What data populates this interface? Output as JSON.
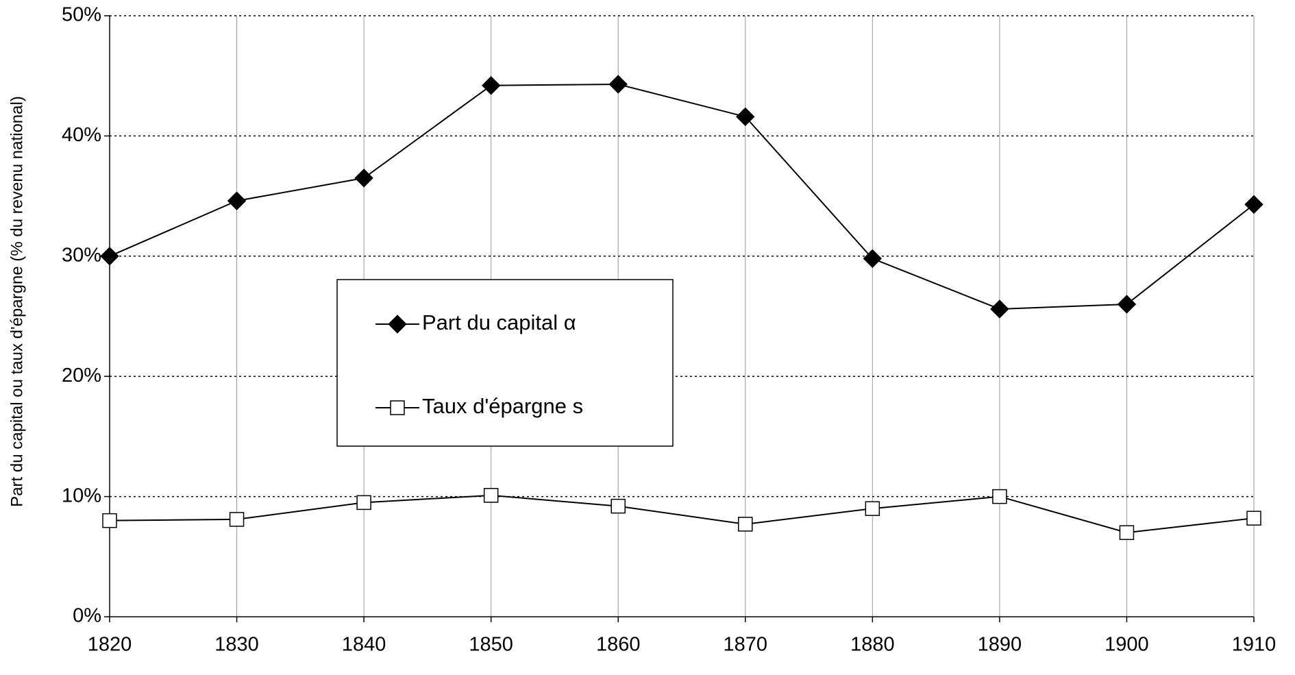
{
  "chart_data": {
    "type": "line",
    "y_label": "Part du capital ou taux d'épargne (% du revenu national)",
    "x": [
      1820,
      1830,
      1840,
      1850,
      1860,
      1870,
      1880,
      1890,
      1900,
      1910
    ],
    "xlim": [
      1820,
      1910
    ],
    "xticks": [
      1820,
      1830,
      1840,
      1850,
      1860,
      1870,
      1880,
      1890,
      1900,
      1910
    ],
    "ylim": [
      0,
      50
    ],
    "yticks": [
      {
        "value": 0,
        "label": "0%"
      },
      {
        "value": 10,
        "label": "10%"
      },
      {
        "value": 20,
        "label": "20%"
      },
      {
        "value": 30,
        "label": "30%"
      },
      {
        "value": 40,
        "label": "40%"
      },
      {
        "value": 50,
        "label": "50%"
      }
    ],
    "grid": true,
    "legend": "center",
    "series": [
      {
        "name": "Part du capital α",
        "color": "#000000",
        "marker": "diamond",
        "values": [
          30.0,
          34.6,
          36.5,
          44.2,
          44.3,
          41.6,
          29.8,
          25.6,
          26.0,
          34.3
        ]
      },
      {
        "name": "Taux d'épargne s",
        "color": "#000000",
        "marker": "square",
        "values": [
          8.0,
          8.1,
          9.5,
          10.1,
          9.2,
          7.7,
          9.0,
          10.0,
          7.0,
          8.2
        ]
      }
    ]
  }
}
